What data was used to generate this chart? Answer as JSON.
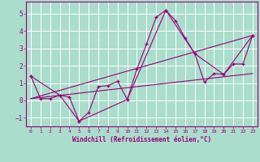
{
  "xlabel": "Windchill (Refroidissement éolien,°C)",
  "background_color": "#aaddcc",
  "grid_color": "#ffffff",
  "line_color": "#990077",
  "xlim": [
    -0.5,
    23.5
  ],
  "ylim": [
    -1.5,
    5.7
  ],
  "yticks": [
    -1,
    0,
    1,
    2,
    3,
    4,
    5
  ],
  "xticks": [
    0,
    1,
    2,
    3,
    4,
    5,
    6,
    7,
    8,
    9,
    10,
    11,
    12,
    13,
    14,
    15,
    16,
    17,
    18,
    19,
    20,
    21,
    22,
    23
  ],
  "series1_x": [
    0,
    1,
    2,
    3,
    4,
    5,
    6,
    7,
    8,
    9,
    10,
    11,
    12,
    13,
    14,
    15,
    16,
    17,
    18,
    19,
    20,
    21,
    22,
    23
  ],
  "series1_y": [
    1.4,
    0.1,
    0.1,
    0.3,
    0.2,
    -1.2,
    -0.7,
    0.8,
    0.85,
    1.1,
    0.05,
    1.8,
    3.25,
    4.8,
    5.2,
    4.6,
    3.6,
    2.7,
    1.05,
    1.55,
    1.5,
    2.1,
    2.1,
    3.75
  ],
  "series2_x": [
    0,
    3,
    5,
    10,
    14,
    17,
    20,
    23
  ],
  "series2_y": [
    1.4,
    0.3,
    -1.2,
    0.05,
    5.2,
    2.7,
    1.5,
    3.75
  ],
  "series3_x": [
    0,
    23
  ],
  "series3_y": [
    0.1,
    3.75
  ],
  "series4_x": [
    0,
    23
  ],
  "series4_y": [
    0.1,
    1.55
  ]
}
